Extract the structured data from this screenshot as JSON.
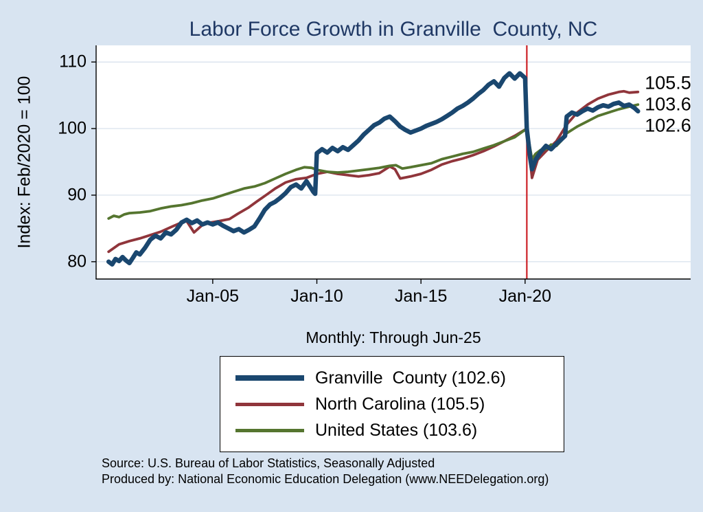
{
  "chart_data": {
    "type": "line",
    "title": "Labor Force Growth in Granville  County, NC",
    "ylabel": "Index: Feb/2020 = 100",
    "note": "Monthly: Through Jun-25",
    "xlim": [
      1999.4,
      2027.95
    ],
    "ylim": [
      77.4,
      112.5
    ],
    "y_ticks": [
      80,
      90,
      100,
      110
    ],
    "x_ticks": [
      {
        "value": 2005,
        "label": "Jan-05"
      },
      {
        "value": 2010,
        "label": "Jan-10"
      },
      {
        "value": 2015,
        "label": "Jan-15"
      },
      {
        "value": 2020,
        "label": "Jan-20"
      }
    ],
    "grid": true,
    "legend_position": "below",
    "vline": {
      "x": 2020.083,
      "color": "#cc2026"
    },
    "end_labels": [
      {
        "text": "105.5",
        "value": 105.5
      },
      {
        "text": "103.6",
        "value": 103.6
      },
      {
        "text": "102.6",
        "value": 102.6
      }
    ],
    "series": [
      {
        "name": "Granville  County (102.6)",
        "color": "#1a476f",
        "width": 6.5,
        "points": [
          [
            2000.0,
            80.0
          ],
          [
            2000.17,
            79.6
          ],
          [
            2000.33,
            80.4
          ],
          [
            2000.5,
            80.1
          ],
          [
            2000.67,
            80.7
          ],
          [
            2000.83,
            80.2
          ],
          [
            2001.0,
            79.8
          ],
          [
            2001.17,
            80.6
          ],
          [
            2001.33,
            81.4
          ],
          [
            2001.5,
            81.1
          ],
          [
            2001.75,
            82.1
          ],
          [
            2002.0,
            83.3
          ],
          [
            2002.25,
            83.9
          ],
          [
            2002.5,
            83.5
          ],
          [
            2002.75,
            84.4
          ],
          [
            2003.0,
            84.1
          ],
          [
            2003.25,
            84.8
          ],
          [
            2003.5,
            85.9
          ],
          [
            2003.75,
            86.3
          ],
          [
            2004.0,
            85.8
          ],
          [
            2004.25,
            86.2
          ],
          [
            2004.5,
            85.6
          ],
          [
            2004.75,
            85.9
          ],
          [
            2005.0,
            85.6
          ],
          [
            2005.25,
            85.9
          ],
          [
            2005.5,
            85.4
          ],
          [
            2005.75,
            85.0
          ],
          [
            2006.0,
            84.6
          ],
          [
            2006.25,
            84.9
          ],
          [
            2006.5,
            84.4
          ],
          [
            2006.75,
            84.8
          ],
          [
            2007.0,
            85.3
          ],
          [
            2007.25,
            86.5
          ],
          [
            2007.5,
            87.8
          ],
          [
            2007.75,
            88.6
          ],
          [
            2008.0,
            89.0
          ],
          [
            2008.25,
            89.6
          ],
          [
            2008.5,
            90.3
          ],
          [
            2008.75,
            91.2
          ],
          [
            2009.0,
            91.6
          ],
          [
            2009.25,
            91.0
          ],
          [
            2009.5,
            92.1
          ],
          [
            2009.67,
            91.3
          ],
          [
            2009.83,
            90.5
          ],
          [
            2009.92,
            90.2
          ],
          [
            2010.0,
            96.3
          ],
          [
            2010.25,
            96.9
          ],
          [
            2010.5,
            96.4
          ],
          [
            2010.75,
            97.1
          ],
          [
            2011.0,
            96.6
          ],
          [
            2011.25,
            97.2
          ],
          [
            2011.5,
            96.8
          ],
          [
            2011.75,
            97.5
          ],
          [
            2012.0,
            98.2
          ],
          [
            2012.25,
            99.1
          ],
          [
            2012.5,
            99.8
          ],
          [
            2012.75,
            100.5
          ],
          [
            2013.0,
            100.9
          ],
          [
            2013.25,
            101.5
          ],
          [
            2013.5,
            101.8
          ],
          [
            2013.75,
            101.1
          ],
          [
            2014.0,
            100.3
          ],
          [
            2014.25,
            99.8
          ],
          [
            2014.5,
            99.4
          ],
          [
            2014.75,
            99.7
          ],
          [
            2015.0,
            100.0
          ],
          [
            2015.25,
            100.4
          ],
          [
            2015.5,
            100.7
          ],
          [
            2015.75,
            101.0
          ],
          [
            2016.0,
            101.4
          ],
          [
            2016.25,
            101.9
          ],
          [
            2016.5,
            102.4
          ],
          [
            2016.75,
            103.0
          ],
          [
            2017.0,
            103.4
          ],
          [
            2017.25,
            103.9
          ],
          [
            2017.5,
            104.5
          ],
          [
            2017.75,
            105.2
          ],
          [
            2018.0,
            105.8
          ],
          [
            2018.25,
            106.6
          ],
          [
            2018.5,
            107.1
          ],
          [
            2018.75,
            106.3
          ],
          [
            2019.0,
            107.6
          ],
          [
            2019.25,
            108.3
          ],
          [
            2019.5,
            107.5
          ],
          [
            2019.75,
            108.3
          ],
          [
            2020.0,
            107.6
          ],
          [
            2020.08,
            100.0
          ],
          [
            2020.25,
            95.5
          ],
          [
            2020.33,
            93.9
          ],
          [
            2020.5,
            95.3
          ],
          [
            2020.75,
            96.5
          ],
          [
            2021.0,
            97.4
          ],
          [
            2021.25,
            96.9
          ],
          [
            2021.5,
            97.7
          ],
          [
            2021.75,
            98.4
          ],
          [
            2021.92,
            98.9
          ],
          [
            2022.0,
            101.8
          ],
          [
            2022.25,
            102.4
          ],
          [
            2022.5,
            102.1
          ],
          [
            2022.75,
            102.6
          ],
          [
            2023.0,
            103.0
          ],
          [
            2023.25,
            102.7
          ],
          [
            2023.5,
            103.2
          ],
          [
            2023.75,
            103.5
          ],
          [
            2024.0,
            103.3
          ],
          [
            2024.25,
            103.7
          ],
          [
            2024.5,
            103.9
          ],
          [
            2024.75,
            103.4
          ],
          [
            2025.0,
            103.6
          ],
          [
            2025.25,
            103.1
          ],
          [
            2025.42,
            102.6
          ]
        ]
      },
      {
        "name": "North Carolina (105.5)",
        "color": "#90353b",
        "width": 3.8,
        "points": [
          [
            2000.0,
            81.5
          ],
          [
            2000.5,
            82.6
          ],
          [
            2001.0,
            83.1
          ],
          [
            2001.5,
            83.5
          ],
          [
            2002.0,
            84.0
          ],
          [
            2002.5,
            84.5
          ],
          [
            2003.0,
            85.2
          ],
          [
            2003.5,
            85.9
          ],
          [
            2003.75,
            86.1
          ],
          [
            2004.1,
            84.4
          ],
          [
            2004.5,
            85.5
          ],
          [
            2004.9,
            85.9
          ],
          [
            2005.3,
            86.1
          ],
          [
            2005.8,
            86.4
          ],
          [
            2006.2,
            87.2
          ],
          [
            2006.7,
            88.1
          ],
          [
            2007.1,
            89.0
          ],
          [
            2007.6,
            90.1
          ],
          [
            2008.0,
            91.0
          ],
          [
            2008.5,
            91.9
          ],
          [
            2009.0,
            92.4
          ],
          [
            2009.5,
            92.6
          ],
          [
            2010.0,
            93.2
          ],
          [
            2010.5,
            93.5
          ],
          [
            2011.0,
            93.2
          ],
          [
            2011.5,
            93.0
          ],
          [
            2012.0,
            92.8
          ],
          [
            2012.5,
            93.0
          ],
          [
            2013.0,
            93.3
          ],
          [
            2013.5,
            94.3
          ],
          [
            2013.75,
            93.9
          ],
          [
            2014.0,
            92.5
          ],
          [
            2014.5,
            92.8
          ],
          [
            2015.0,
            93.2
          ],
          [
            2015.5,
            93.8
          ],
          [
            2016.0,
            94.6
          ],
          [
            2016.5,
            95.1
          ],
          [
            2017.0,
            95.5
          ],
          [
            2017.5,
            96.0
          ],
          [
            2018.0,
            96.6
          ],
          [
            2018.5,
            97.3
          ],
          [
            2019.0,
            98.1
          ],
          [
            2019.5,
            98.9
          ],
          [
            2020.08,
            100.0
          ],
          [
            2020.33,
            92.6
          ],
          [
            2020.6,
            95.3
          ],
          [
            2021.0,
            96.6
          ],
          [
            2021.5,
            98.1
          ],
          [
            2022.0,
            100.6
          ],
          [
            2022.5,
            102.4
          ],
          [
            2023.0,
            103.6
          ],
          [
            2023.5,
            104.5
          ],
          [
            2024.0,
            105.1
          ],
          [
            2024.5,
            105.5
          ],
          [
            2024.75,
            105.6
          ],
          [
            2025.0,
            105.4
          ],
          [
            2025.42,
            105.5
          ]
        ]
      },
      {
        "name": "United States (103.6)",
        "color": "#55752f",
        "width": 3.8,
        "points": [
          [
            2000.0,
            86.5
          ],
          [
            2000.25,
            86.9
          ],
          [
            2000.5,
            86.7
          ],
          [
            2000.75,
            87.1
          ],
          [
            2001.0,
            87.3
          ],
          [
            2001.5,
            87.4
          ],
          [
            2002.0,
            87.6
          ],
          [
            2002.5,
            88.0
          ],
          [
            2003.0,
            88.3
          ],
          [
            2003.5,
            88.5
          ],
          [
            2004.0,
            88.8
          ],
          [
            2004.5,
            89.2
          ],
          [
            2005.0,
            89.5
          ],
          [
            2005.5,
            90.0
          ],
          [
            2006.0,
            90.5
          ],
          [
            2006.5,
            91.0
          ],
          [
            2007.0,
            91.3
          ],
          [
            2007.5,
            91.8
          ],
          [
            2008.0,
            92.5
          ],
          [
            2008.5,
            93.2
          ],
          [
            2009.0,
            93.8
          ],
          [
            2009.4,
            94.2
          ],
          [
            2009.75,
            94.1
          ],
          [
            2010.0,
            93.8
          ],
          [
            2010.5,
            93.5
          ],
          [
            2011.0,
            93.4
          ],
          [
            2011.5,
            93.5
          ],
          [
            2012.0,
            93.7
          ],
          [
            2012.5,
            93.9
          ],
          [
            2013.0,
            94.1
          ],
          [
            2013.5,
            94.4
          ],
          [
            2013.8,
            94.5
          ],
          [
            2014.1,
            94.0
          ],
          [
            2014.5,
            94.2
          ],
          [
            2015.0,
            94.5
          ],
          [
            2015.5,
            94.8
          ],
          [
            2016.0,
            95.4
          ],
          [
            2016.5,
            95.8
          ],
          [
            2017.0,
            96.2
          ],
          [
            2017.5,
            96.5
          ],
          [
            2018.0,
            97.0
          ],
          [
            2018.5,
            97.5
          ],
          [
            2019.0,
            98.1
          ],
          [
            2019.5,
            98.7
          ],
          [
            2020.08,
            100.0
          ],
          [
            2020.33,
            95.4
          ],
          [
            2020.5,
            96.2
          ],
          [
            2020.75,
            96.8
          ],
          [
            2021.0,
            96.9
          ],
          [
            2021.25,
            97.6
          ],
          [
            2021.5,
            97.4
          ],
          [
            2021.75,
            98.2
          ],
          [
            2022.0,
            99.3
          ],
          [
            2022.5,
            100.3
          ],
          [
            2023.0,
            101.1
          ],
          [
            2023.5,
            101.9
          ],
          [
            2024.0,
            102.4
          ],
          [
            2024.5,
            102.9
          ],
          [
            2025.0,
            103.3
          ],
          [
            2025.42,
            103.6
          ]
        ]
      }
    ]
  },
  "footer": {
    "source": "Source: U.S. Bureau of Labor Statistics, Seasonally Adjusted",
    "produced_by": "Produced by: National Economic Education Delegation (www.NEEDelegation.org)"
  },
  "colors": {
    "background": "#d8e4f1",
    "plot_background": "#ffffff",
    "title": "#1f3864",
    "gridline": "#d4dfeb",
    "axis": "#000000"
  }
}
